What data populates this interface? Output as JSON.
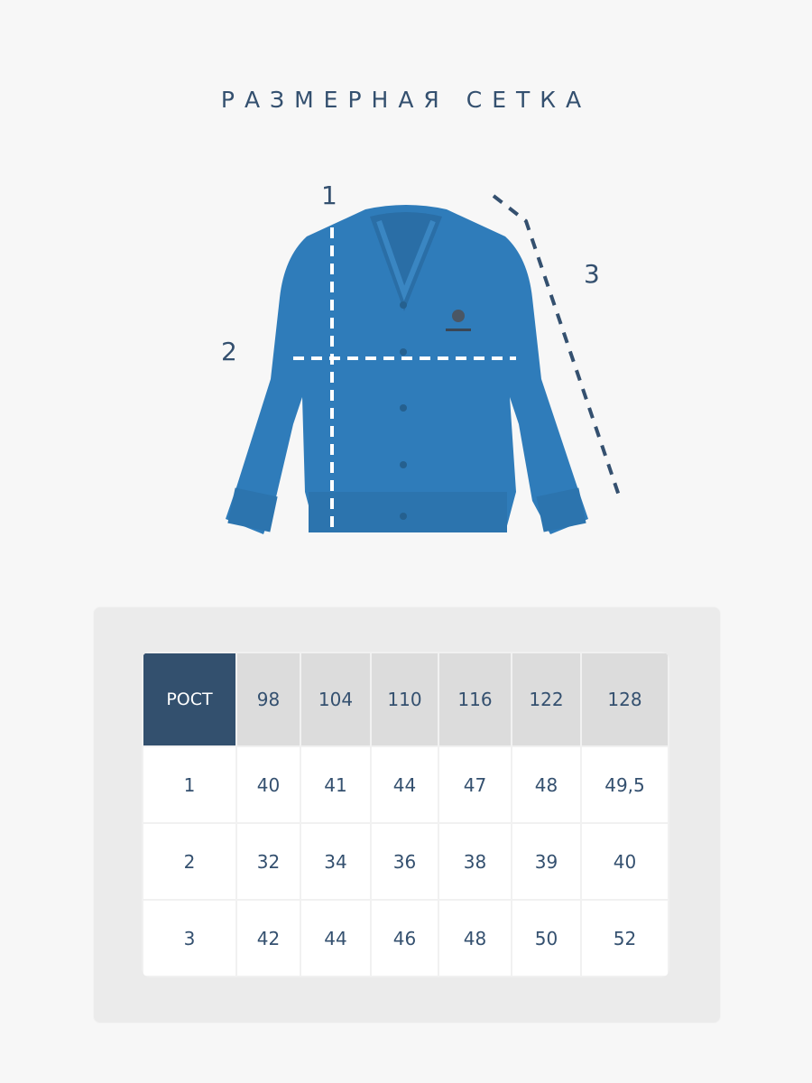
{
  "title": "РАЗМЕРНАЯ СЕТКА",
  "measure_labels": [
    "1",
    "2",
    "3"
  ],
  "colors": {
    "garment": "#2f7cba",
    "accent": "#33506e",
    "header_bg": "#dcdcdc"
  },
  "table": {
    "corner": "РОСТ",
    "sizes": [
      "98",
      "104",
      "110",
      "116",
      "122",
      "128"
    ],
    "rows": [
      {
        "label": "1",
        "values": [
          "40",
          "41",
          "44",
          "47",
          "48",
          "49,5"
        ]
      },
      {
        "label": "2",
        "values": [
          "32",
          "34",
          "36",
          "38",
          "39",
          "40"
        ]
      },
      {
        "label": "3",
        "values": [
          "42",
          "44",
          "46",
          "48",
          "50",
          "52"
        ]
      }
    ]
  }
}
